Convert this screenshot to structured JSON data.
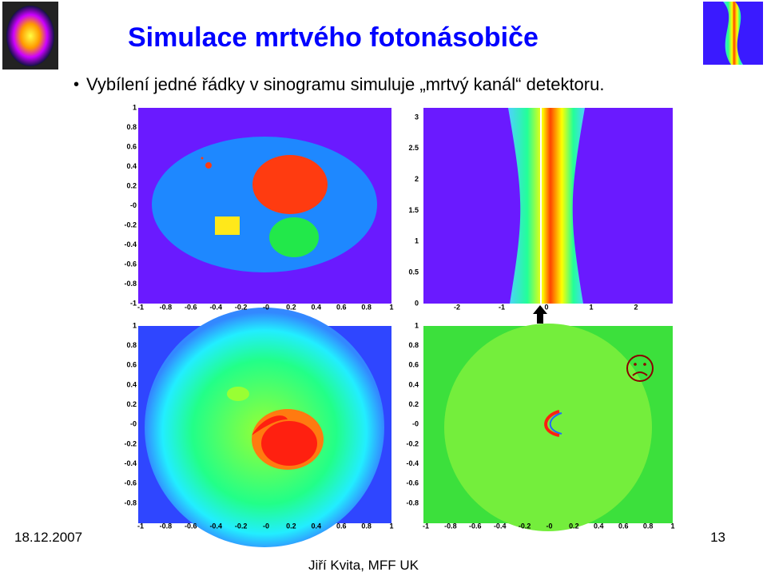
{
  "header": {
    "title": "Simulace mrtvého fotonásobiče"
  },
  "bullet": "Vybílení jedné řádky v sinogramu simuluje „mrtvý kanál“ detektoru.",
  "panels": [
    {
      "yticks": [
        "1",
        "0.8",
        "0.6",
        "0.4",
        "0.2",
        "-0",
        "-0.2",
        "-0.4",
        "-0.6",
        "-0.8",
        "-1"
      ],
      "xticks": [
        "-1",
        "-0.8",
        "-0.6",
        "-0.4",
        "-0.2",
        "-0",
        "0.2",
        "0.4",
        "0.6",
        "0.8",
        "1"
      ]
    },
    {
      "yticks": [
        "3",
        "2.5",
        "2",
        "1.5",
        "1",
        "0.5",
        "0"
      ],
      "xticks": [
        "-2",
        "-1",
        "0",
        "1",
        "2"
      ]
    },
    {
      "yticks": [
        "1",
        "0.8",
        "0.6",
        "0.4",
        "0.2",
        "-0",
        "-0.2",
        "-0.4",
        "-0.6",
        "-0.8"
      ],
      "xticks": [
        "-1",
        "-0.8",
        "-0.6",
        "-0.4",
        "-0.2",
        "-0",
        "0.2",
        "0.4",
        "0.6",
        "0.8",
        "1"
      ]
    },
    {
      "yticks": [
        "1",
        "0.8",
        "0.6",
        "0.4",
        "0.2",
        "-0",
        "-0.2",
        "-0.4",
        "-0.6",
        "-0.8"
      ],
      "xticks": [
        "-1",
        "-0.8",
        "-0.6",
        "-0.4",
        "-0.2",
        "-0",
        "0.2",
        "0.4",
        "0.6",
        "0.8",
        "1"
      ]
    }
  ],
  "footer": {
    "date": "18.12.2007",
    "author": "Jiří Kvita, MFF UK",
    "page": "13"
  }
}
